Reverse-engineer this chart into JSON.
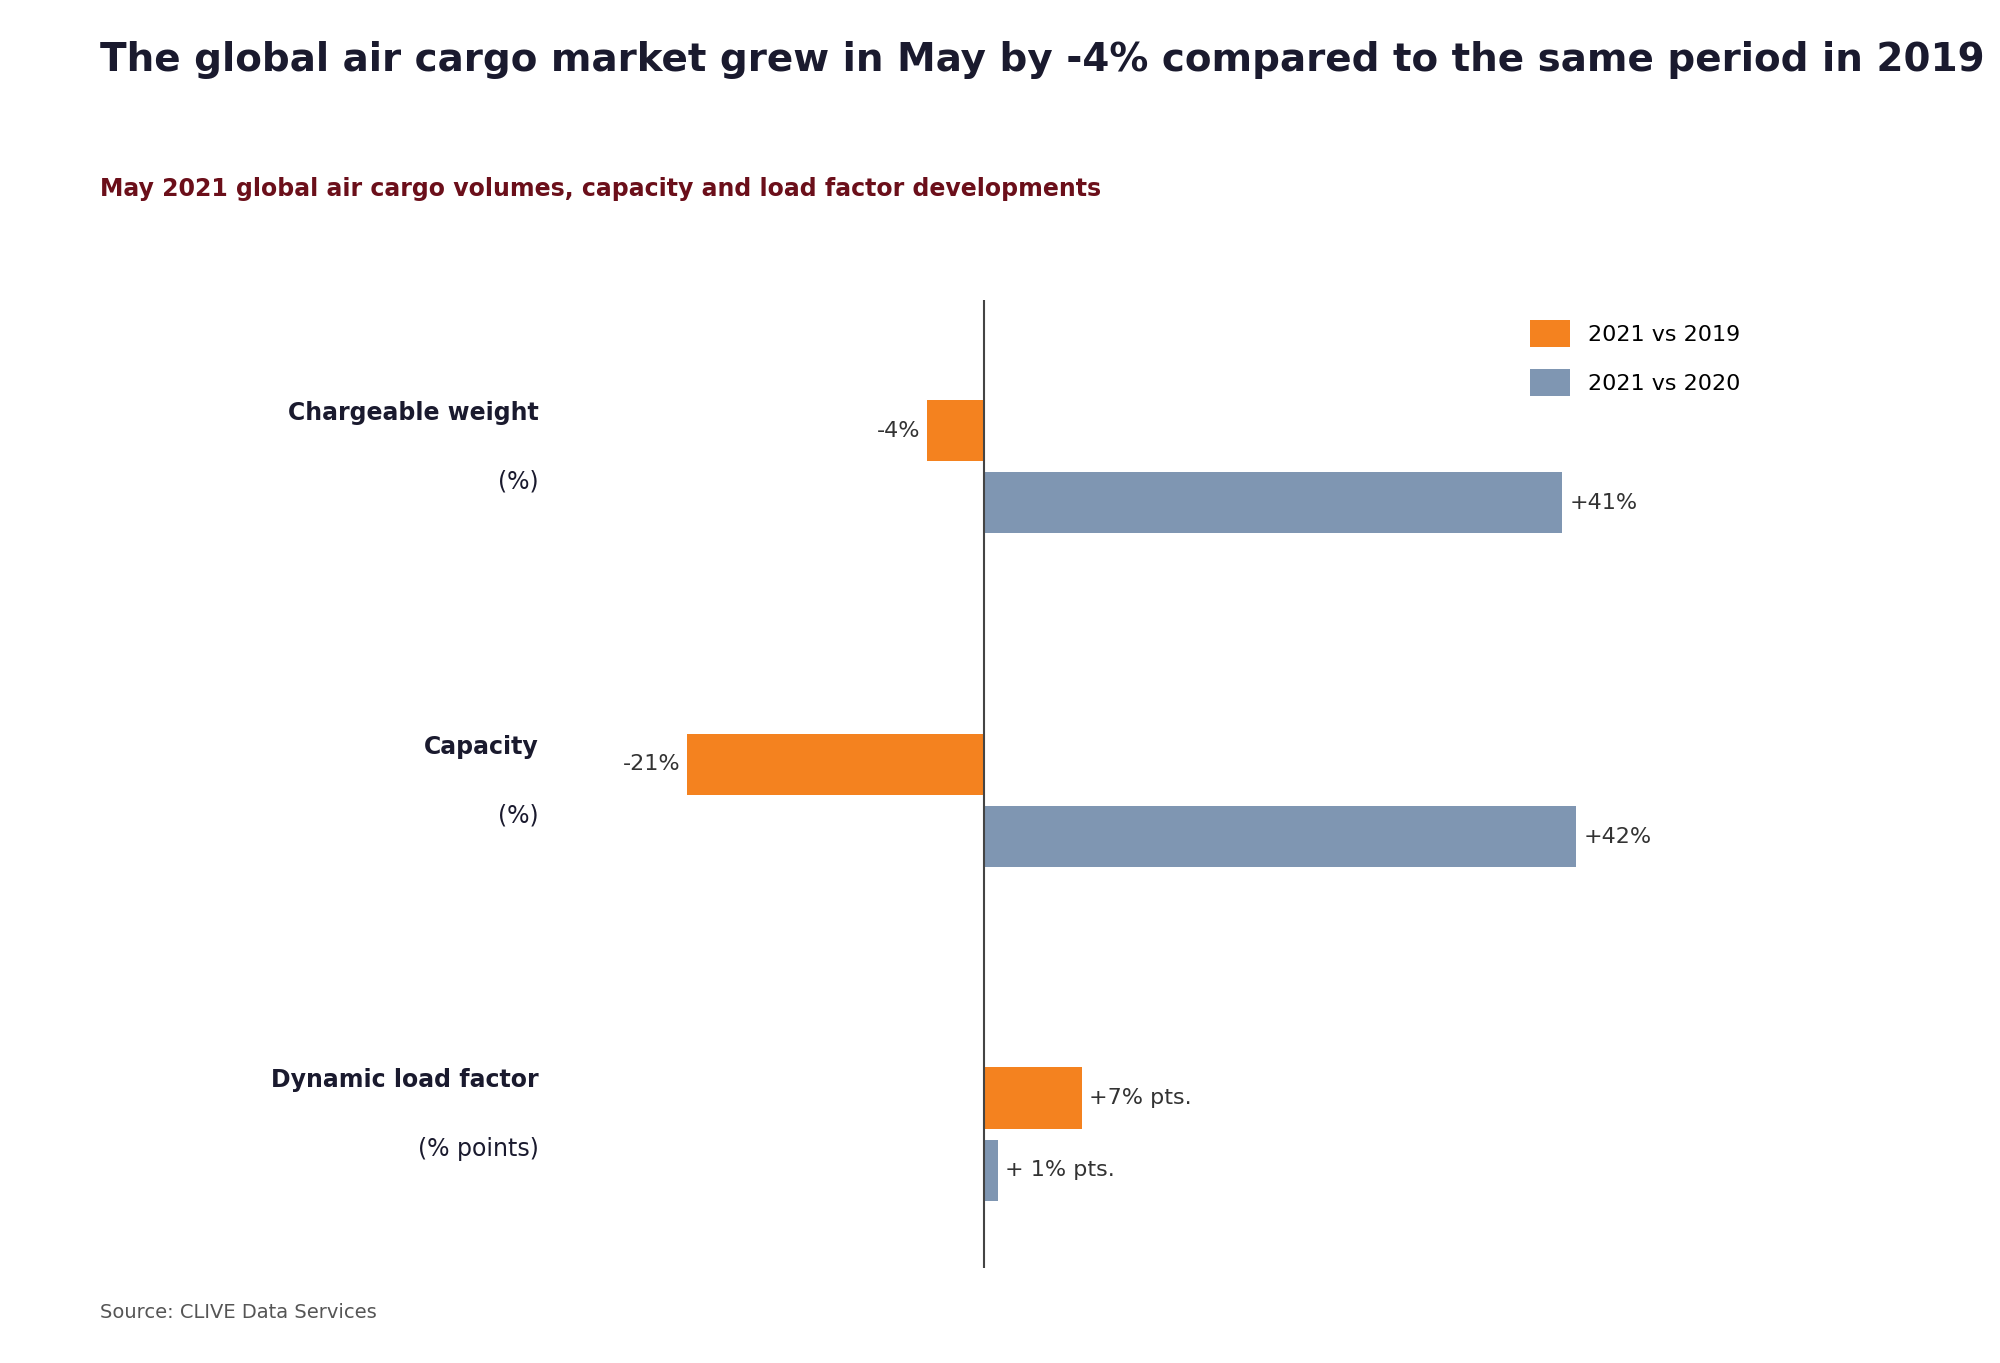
{
  "title": "The global air cargo market grew in May by -4% compared to the same period in 2019",
  "subtitle": "May 2021 global air cargo volumes, capacity and load factor developments",
  "title_color": "#1a1a2e",
  "subtitle_color": "#6b0f1a",
  "title_fontsize": 28,
  "subtitle_fontsize": 17,
  "source_text": "Source: CLIVE Data Services",
  "background_color": "#ffffff",
  "cat_labels_bold": [
    "Chargeable weight",
    "Capacity",
    "Dynamic load factor"
  ],
  "cat_labels_normal": [
    "(%)",
    "(%)",
    "(% points)"
  ],
  "vs2019_values": [
    -4,
    -21,
    7
  ],
  "vs2020_values": [
    41,
    42,
    1
  ],
  "vs2019_labels": [
    "-4%",
    "-21%",
    "+7% pts."
  ],
  "vs2020_labels": [
    "+41%",
    "+42%",
    "+ 1% pts."
  ],
  "orange_color": "#F4821F",
  "blue_color": "#7F96B2",
  "legend_labels": [
    "2021 vs 2019",
    "2021 vs 2020"
  ],
  "xlim": [
    -30,
    55
  ],
  "label_fontsize": 16,
  "category_fontsize": 17,
  "legend_fontsize": 16,
  "source_fontsize": 14,
  "group_centers": [
    8.0,
    5.0,
    2.0
  ],
  "bar_height": 0.55,
  "bar_gap": 0.65
}
